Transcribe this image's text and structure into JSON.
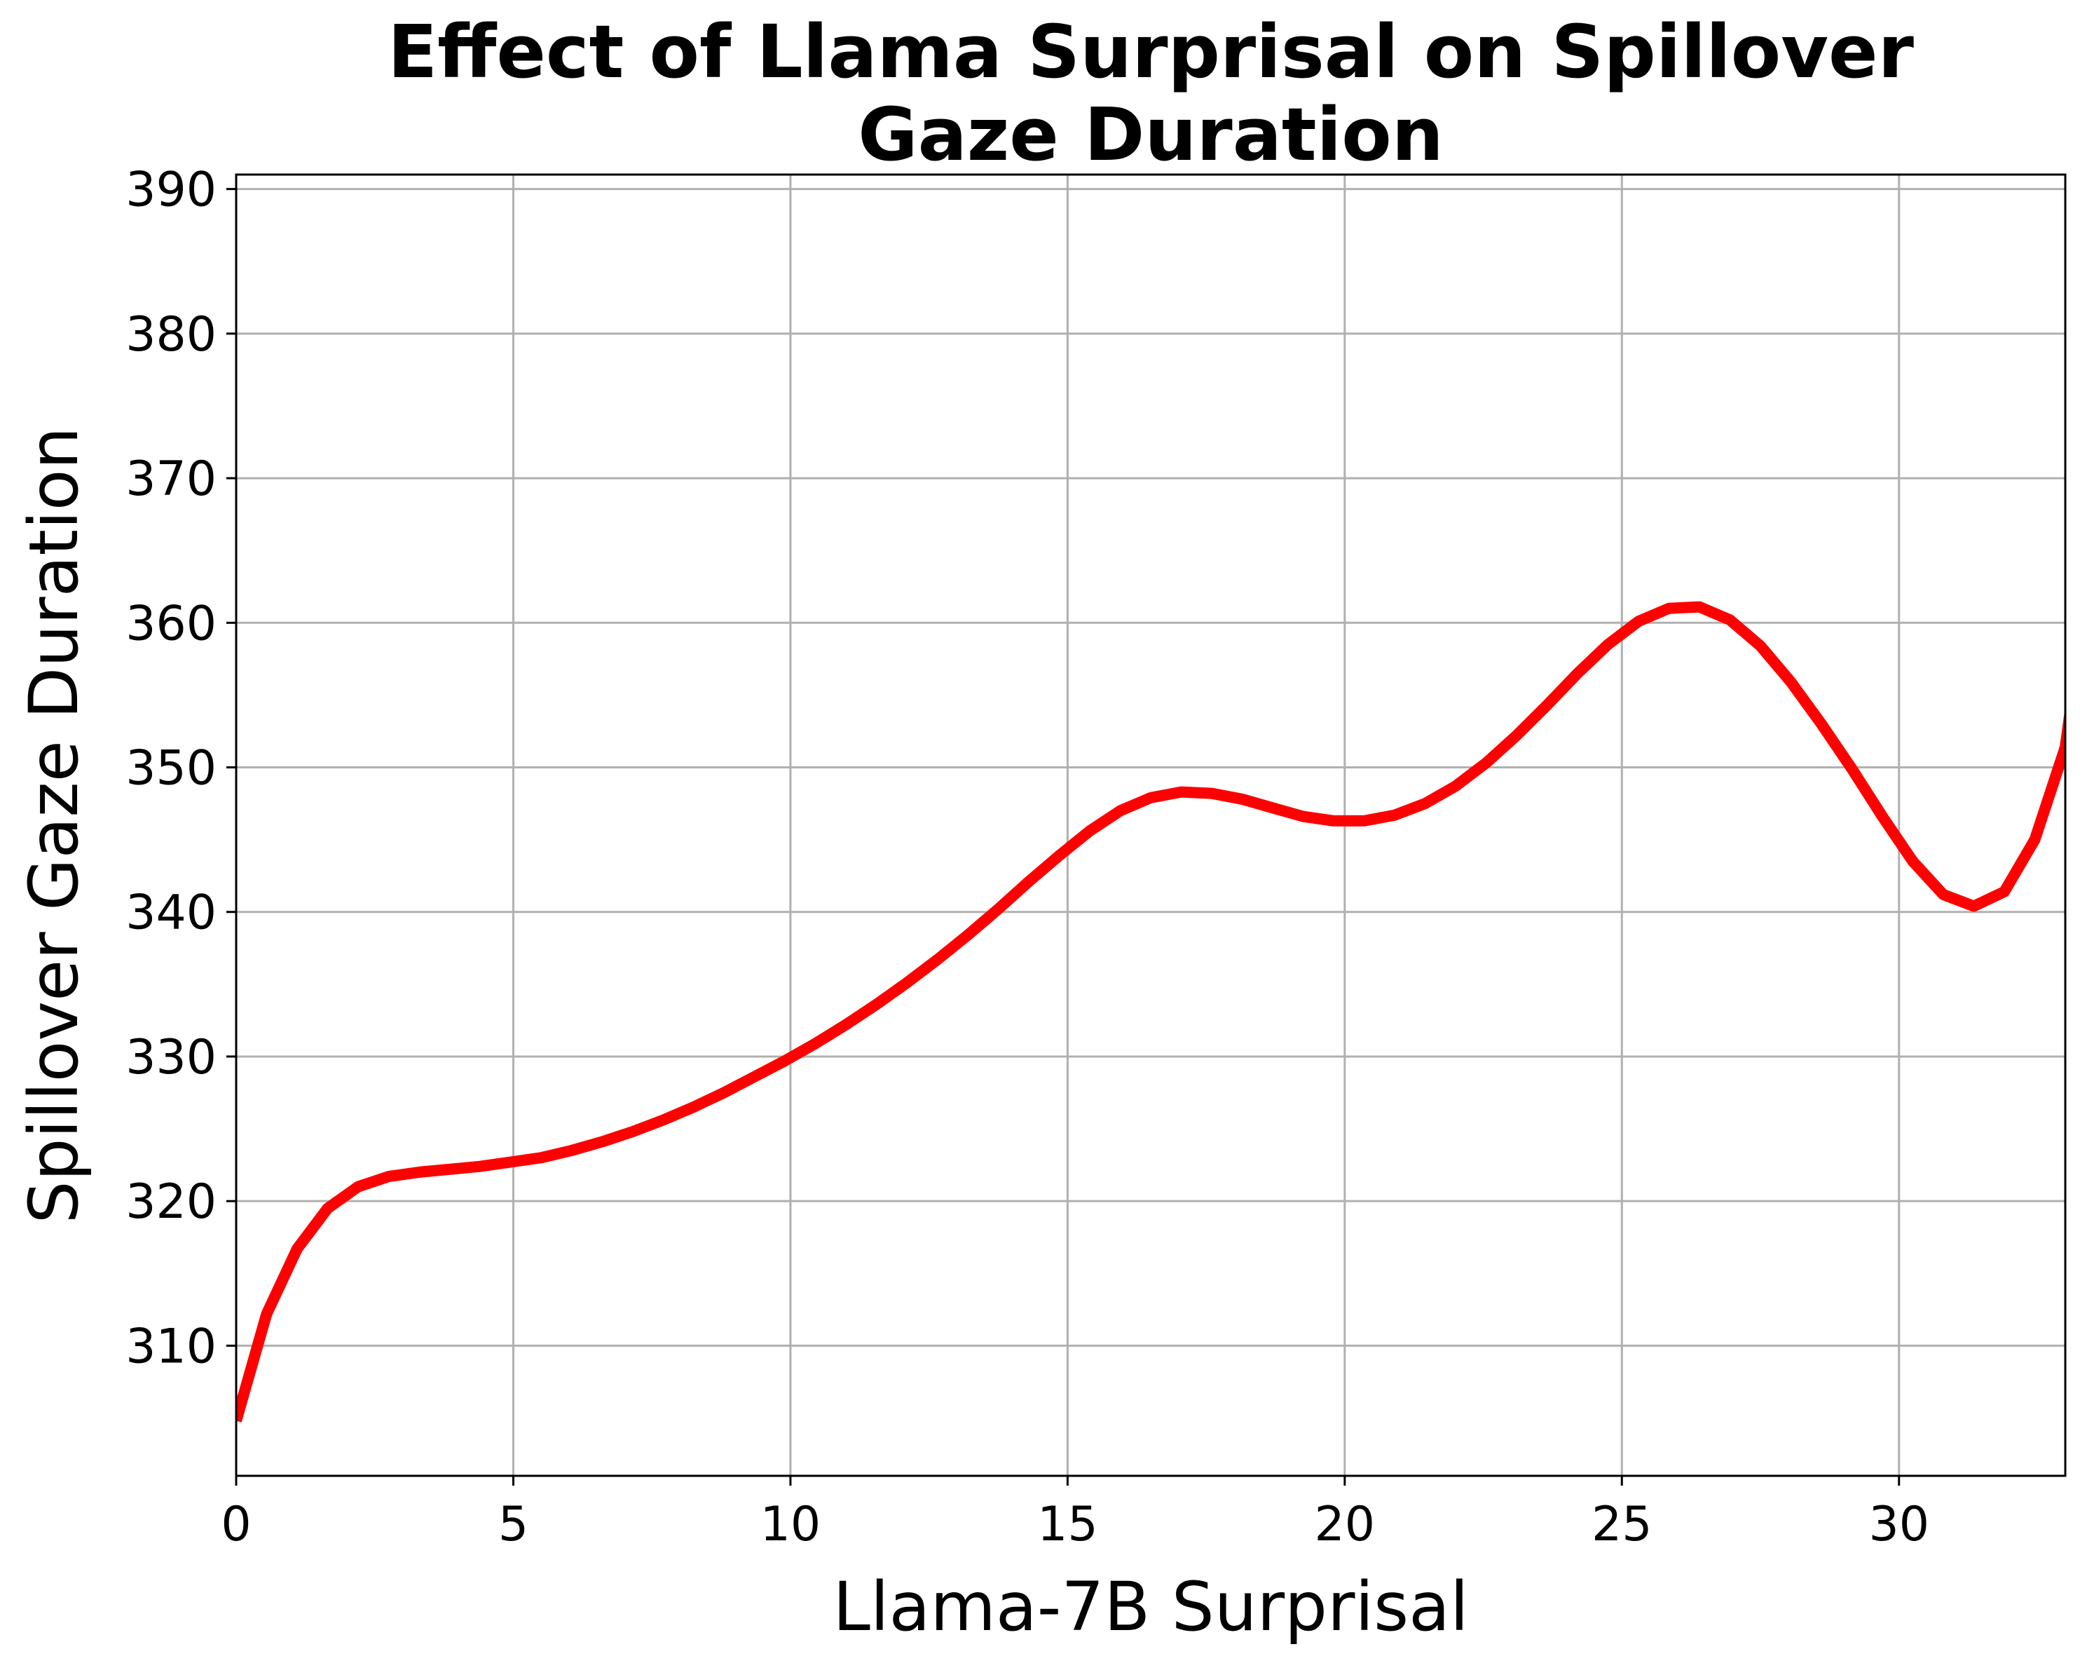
{
  "chart_data": {
    "type": "line",
    "title": "Effect of Llama Surprisal on Spillover Gaze Duration",
    "title_lines": [
      "Effect of Llama Surprisal on Spillover",
      "Gaze Duration"
    ],
    "xlabel": "Llama-7B Surprisal",
    "ylabel": "Spillover Gaze Duration",
    "xlim": [
      0,
      33
    ],
    "ylim": [
      301,
      391
    ],
    "xticks": [
      0,
      5,
      10,
      15,
      20,
      25,
      30
    ],
    "yticks": [
      310,
      320,
      330,
      340,
      350,
      360,
      370,
      380,
      390
    ],
    "xtick_labels": [
      "0",
      "5",
      "10",
      "15",
      "20",
      "25",
      "30"
    ],
    "ytick_labels": [
      "310",
      "320",
      "330",
      "340",
      "350",
      "360",
      "370",
      "380",
      "390"
    ],
    "grid": true,
    "series": [
      {
        "color": "#ff0000",
        "x": [
          0,
          0.55,
          1.1,
          1.65,
          2.2,
          2.75,
          3.3,
          3.85,
          4.4,
          4.95,
          5.5,
          6.05,
          6.6,
          7.15,
          7.7,
          8.25,
          8.8,
          9.35,
          9.9,
          10.45,
          11.0,
          11.55,
          12.1,
          12.65,
          13.2,
          13.75,
          14.3,
          14.85,
          15.4,
          15.95,
          16.5,
          17.05,
          17.6,
          18.15,
          18.7,
          19.25,
          19.8,
          20.35,
          20.9,
          21.45,
          22.0,
          22.55,
          23.1,
          23.65,
          24.2,
          24.75,
          25.3,
          25.85,
          26.4,
          26.95,
          27.5,
          28.05,
          28.6,
          29.15,
          29.7,
          30.25,
          30.8,
          31.35,
          31.9,
          32.45,
          33.0
        ],
        "y": [
          304.8,
          312.2,
          316.7,
          319.5,
          321.0,
          321.7,
          322.0,
          322.2,
          322.4,
          322.7,
          323.0,
          323.5,
          324.1,
          324.8,
          325.6,
          326.5,
          327.5,
          328.6,
          329.7,
          330.9,
          332.2,
          333.6,
          335.1,
          336.7,
          338.4,
          340.2,
          342.1,
          343.9,
          345.6,
          347.0,
          347.9,
          348.3,
          348.2,
          347.8,
          347.2,
          346.6,
          346.3,
          346.3,
          346.7,
          347.5,
          348.7,
          350.3,
          352.2,
          354.3,
          356.5,
          358.5,
          360.1,
          361.0,
          361.1,
          360.2,
          358.4,
          355.9,
          353.0,
          349.9,
          346.6,
          343.5,
          341.2,
          340.4,
          341.4,
          345.0,
          351.4
        ],
        "x_end": [
          33.0,
          33.2
        ],
        "y_end": [
          351.4,
          357.0
        ]
      }
    ]
  }
}
